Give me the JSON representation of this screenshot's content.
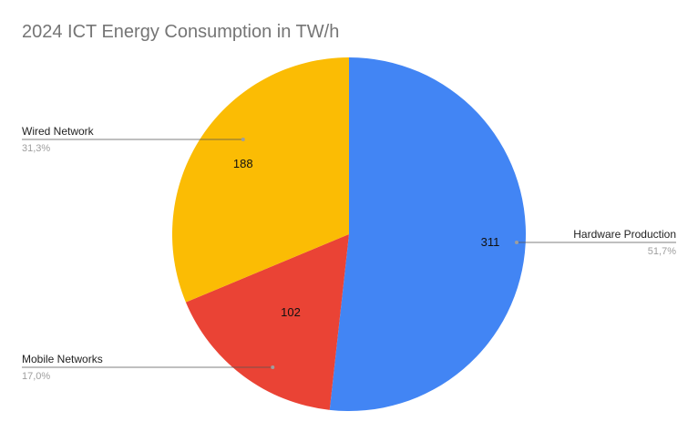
{
  "chart_data": {
    "type": "pie",
    "title": "2024 ICT Energy Consumption in TW/h",
    "slices": [
      {
        "label": "Hardware Production",
        "value": 311,
        "value_label": "311",
        "percent_label": "51,7%",
        "color": "#4285f4"
      },
      {
        "label": "Mobile Networks",
        "value": 102,
        "value_label": "102",
        "percent_label": "17,0%",
        "color": "#ea4335"
      },
      {
        "label": "Wired Network",
        "value": 188,
        "value_label": "188",
        "percent_label": "31,3%",
        "color": "#fbbc04"
      }
    ],
    "legend": "none"
  }
}
